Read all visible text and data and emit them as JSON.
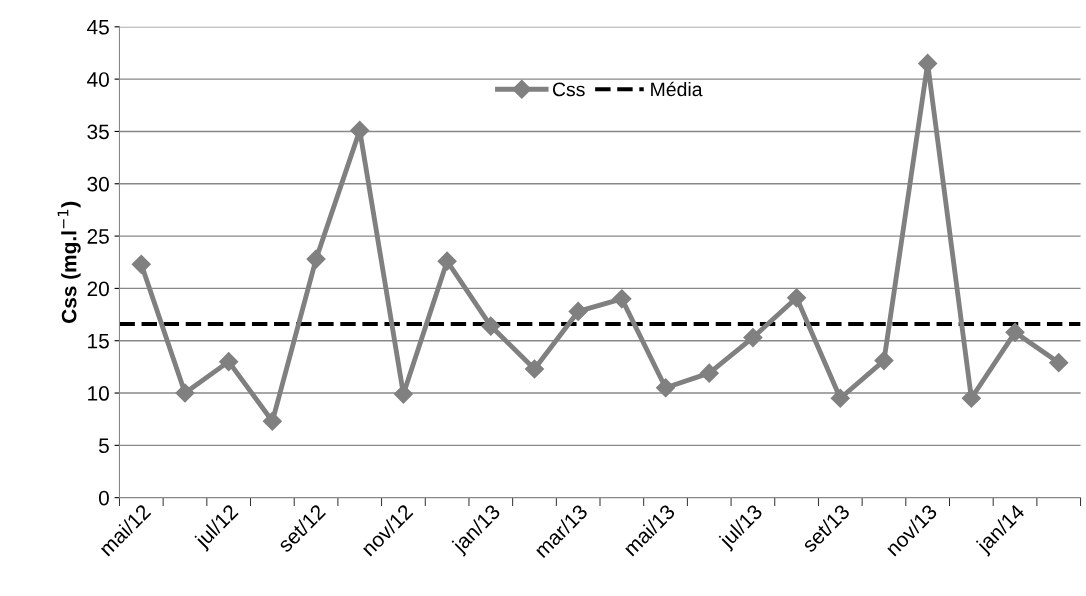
{
  "chart_data": {
    "type": "line",
    "ylabel": "Css (mg.l$^{−1}$)",
    "categories": [
      "mai/12",
      null,
      "jul/12",
      null,
      "set/12",
      null,
      "nov/12",
      null,
      "jan/13",
      null,
      "mar/13",
      null,
      "mai/13",
      null,
      "jul/13",
      null,
      "set/13",
      null,
      "nov/13",
      null,
      "jan/14",
      null
    ],
    "series": [
      {
        "name": "Css",
        "color": "#808080",
        "values": [
          22.3,
          10.0,
          13.0,
          7.3,
          22.8,
          35.1,
          9.9,
          22.6,
          16.4,
          12.3,
          17.8,
          19.0,
          10.5,
          11.9,
          15.3,
          19.1,
          9.5,
          13.1,
          41.5,
          9.5,
          15.8,
          12.9
        ]
      }
    ],
    "ref_lines": [
      {
        "axis": "y",
        "value": 16.6,
        "label": "Média",
        "color": "#000000",
        "line_style": "dashed"
      }
    ],
    "ylim": [
      0,
      45
    ],
    "yticks": [
      0,
      5,
      10,
      15,
      20,
      25,
      30,
      35,
      40,
      45
    ],
    "grid": "y",
    "legend": "top",
    "marker": "diamond",
    "line_style": "solid"
  }
}
